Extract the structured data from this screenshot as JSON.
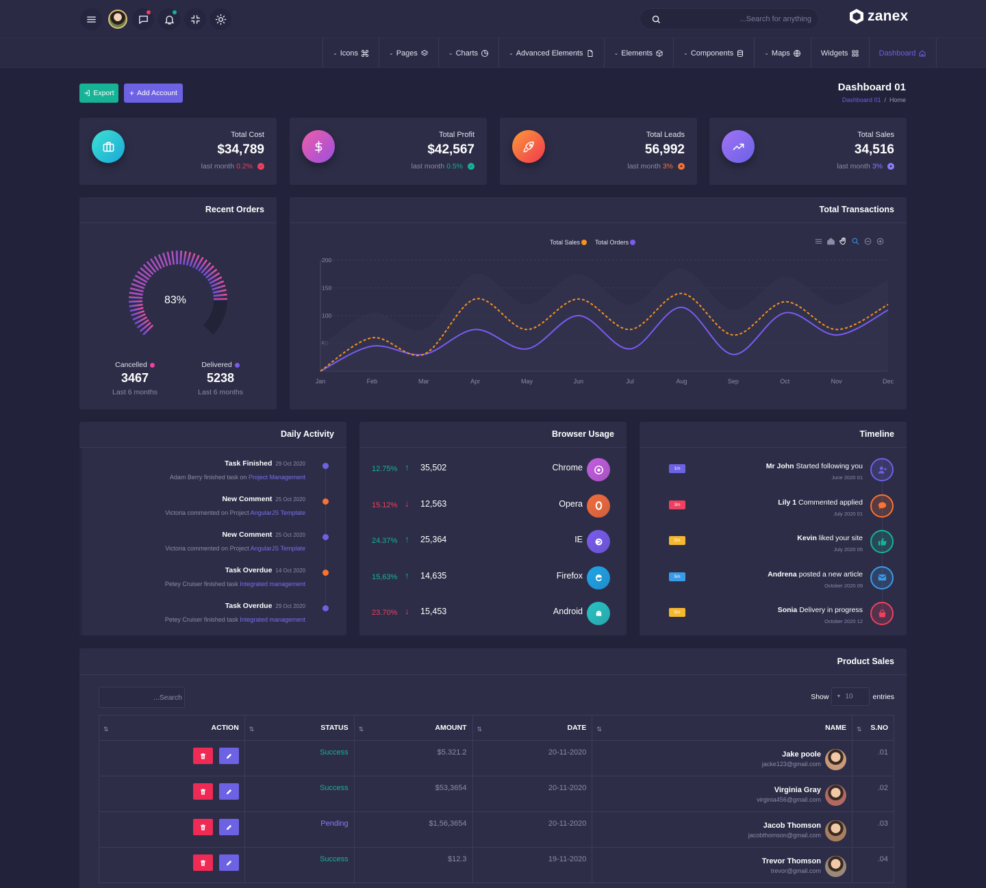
{
  "header": {
    "search_placeholder": "...Search for anything",
    "brand": "zanex",
    "message_dot_color": "#ef4060",
    "bell_dot_color": "#16b396"
  },
  "nav": [
    {
      "label": "Icons",
      "icon": "command-icon"
    },
    {
      "label": "Pages",
      "icon": "layers-icon"
    },
    {
      "label": "Charts",
      "icon": "pie-chart-icon"
    },
    {
      "label": "Advanced Elements",
      "icon": "file-icon"
    },
    {
      "label": "Elements",
      "icon": "box-icon"
    },
    {
      "label": "Components",
      "icon": "database-icon"
    },
    {
      "label": "Maps",
      "icon": "globe-icon"
    },
    {
      "label": "Widgets",
      "icon": "grid-icon"
    },
    {
      "label": "Dashboard",
      "icon": "home-icon",
      "active": true
    }
  ],
  "actions": {
    "export": "Export",
    "add_account": "Add Account"
  },
  "page": {
    "title": "Dashboard 01",
    "breadcrumb": [
      "Dashboard 01",
      "Home"
    ]
  },
  "stats": [
    {
      "label": "Total Cost",
      "value": "$34,789",
      "sub": "last month",
      "change": "0.2%",
      "change_color": "#ef4060"
    },
    {
      "label": "Total Profit",
      "value": "$42,567",
      "sub": "last month",
      "change": "0.5%",
      "change_color": "#16b396"
    },
    {
      "label": "Total Leads",
      "value": "56,992",
      "sub": "last month",
      "change": "3%",
      "change_color": "#fb7330"
    },
    {
      "label": "Total Sales",
      "value": "34,516",
      "sub": "last month",
      "change": "3%",
      "change_color": "#8a7cf8"
    }
  ],
  "recent_orders": {
    "title": "Recent Orders",
    "percent": "83%",
    "percent_value": 83,
    "cancelled": {
      "label": "Cancelled",
      "value": "3467",
      "period": "Last 6 months",
      "color": "#f0419b"
    },
    "delivered": {
      "label": "Delivered",
      "value": "5238",
      "period": "Last 6 months",
      "color": "#7a5cf0"
    }
  },
  "chart_data": {
    "type": "line",
    "title": "Total Transactions",
    "categories": [
      "Jan",
      "Feb",
      "Mar",
      "Apr",
      "May",
      "Jun",
      "Jul",
      "Aug",
      "Sep",
      "Oct",
      "Nov",
      "Dec"
    ],
    "ylim": [
      0,
      200
    ],
    "yticks": [
      0,
      50,
      100,
      150,
      200
    ],
    "series": [
      {
        "name": "Total Sales",
        "color": "#f7931e",
        "dashed": true,
        "values": [
          0,
          60,
          30,
          130,
          75,
          130,
          75,
          140,
          65,
          125,
          75,
          120
        ]
      },
      {
        "name": "Total Orders",
        "color": "#7a5cf0",
        "dashed": false,
        "values": [
          0,
          45,
          30,
          75,
          40,
          100,
          40,
          115,
          30,
          105,
          65,
          110
        ]
      }
    ]
  },
  "daily_activity": {
    "title": "Daily Activity",
    "items": [
      {
        "title": "Task Finished",
        "date": "29 Oct 2020",
        "text": "Adam Berry finished task on",
        "link": "Project Management",
        "color": "#6d62e4"
      },
      {
        "title": "New Comment",
        "date": "25 Oct 2020",
        "text": "Victoria commented on Project",
        "link": "AngularJS Template",
        "color": "#fb7330"
      },
      {
        "title": "New Comment",
        "date": "25 Oct 2020",
        "text": "Victoria commented on Project",
        "link": "AngularJS Template",
        "color": "#6d62e4"
      },
      {
        "title": "Task Overdue",
        "date": "14 Oct 2020",
        "text": "Petey Cruiser finished task",
        "link": "Integrated management",
        "color": "#fb7330"
      },
      {
        "title": "Task Overdue",
        "date": "29 Oct 2020",
        "text": "Petey Cruiser finished task",
        "link": "Integrated management",
        "color": "#6d62e4"
      }
    ]
  },
  "browser_usage": {
    "title": "Browser Usage",
    "rows": [
      {
        "pct": "12.75%",
        "trend": "up",
        "count": "35,502",
        "name": "Chrome",
        "color": "#c45de0"
      },
      {
        "pct": "15.12%",
        "trend": "down",
        "count": "12,563",
        "name": "Opera",
        "color": "#f56c3c"
      },
      {
        "pct": "24.37%",
        "trend": "up",
        "count": "25,364",
        "name": "IE",
        "color": "#7a5cf0"
      },
      {
        "pct": "15,63%",
        "trend": "up",
        "count": "14,635",
        "name": "Firefox",
        "color": "#1ea5e8"
      },
      {
        "pct": "23.70%",
        "trend": "down",
        "count": "15,453",
        "name": "Android",
        "color": "#27c4c4"
      }
    ]
  },
  "timeline": {
    "title": "Timeline",
    "items": [
      {
        "badge": "1m",
        "name": "Mr John",
        "action": "Started following you",
        "date": "June 2020 01",
        "color": "#6d62e4",
        "icon": "user-plus-icon"
      },
      {
        "badge": "3m",
        "name": "Lily 1",
        "action": "Commented applied",
        "date": "July 2020 01",
        "color": "#fb7330",
        "icon": "comment-icon"
      },
      {
        "badge": "5m",
        "name": "Kevin",
        "action": "liked your site",
        "date": "July 2020 05",
        "color": "#16b396",
        "icon": "thumbs-up-icon"
      },
      {
        "badge": "5m",
        "name": "Andrena",
        "action": "posted a new article",
        "date": "October 2020 09",
        "color": "#3b9be8",
        "icon": "mail-icon"
      },
      {
        "badge": "5m",
        "name": "Sonia",
        "action": "Delivery in progress",
        "date": "October 2020 12",
        "color": "#ef4060",
        "icon": "bag-icon"
      }
    ],
    "badge_colors": [
      "#6d62e4",
      "#ef4060",
      "#f5b72e",
      "#3b9be8",
      "#f5b72e"
    ]
  },
  "product_sales": {
    "title": "Product Sales",
    "search_placeholder": "...Search",
    "show_label": "Show",
    "entries_value": "10",
    "entries_label": "entries",
    "columns": [
      "ACTION",
      "STATUS",
      "AMOUNT",
      "DATE",
      "NAME",
      "S.NO"
    ],
    "rows": [
      {
        "status": "Success",
        "status_color": "#16b396",
        "amount": "$5.321.2",
        "date": "20-11-2020",
        "name": "Jake poole",
        "email": "jacke123@gmail.com",
        "sno": ".01"
      },
      {
        "status": "Success",
        "status_color": "#16b396",
        "amount": "$53,3654",
        "date": "20-11-2020",
        "name": "Virginia Gray",
        "email": "virginia456@gmail.com",
        "sno": ".02"
      },
      {
        "status": "Pending",
        "status_color": "#8a7cf8",
        "amount": "$1,56,3654",
        "date": "20-11-2020",
        "name": "Jacob Thomson",
        "email": "jacobthomson@gmail.com",
        "sno": ".03"
      },
      {
        "status": "Success",
        "status_color": "#16b396",
        "amount": "$12.3",
        "date": "19-11-2020",
        "name": "Trevor Thomson",
        "email": "trevor@gmail.com",
        "sno": ".04"
      }
    ]
  }
}
